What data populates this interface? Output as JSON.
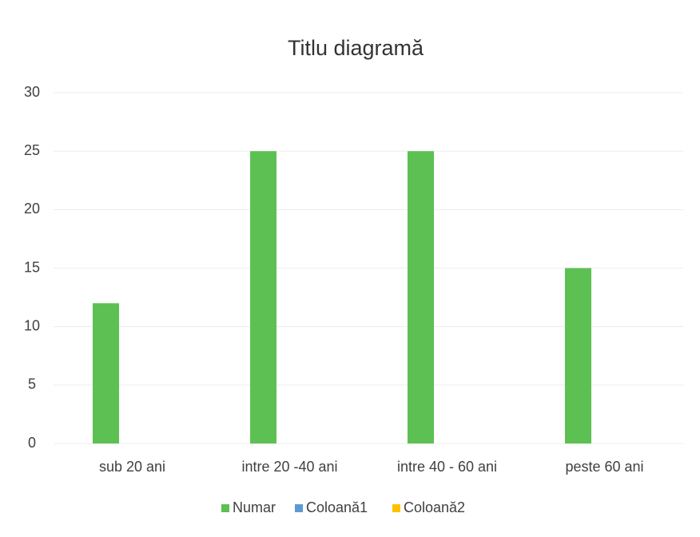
{
  "chart_data": {
    "type": "bar",
    "title": "Titlu diagramă",
    "categories": [
      "sub 20 ani",
      "intre 20 -40 ani",
      "intre 40 - 60 ani",
      "peste 60 ani"
    ],
    "series": [
      {
        "name": "Numar",
        "color": "#5cc152",
        "values": [
          12,
          25,
          25,
          15
        ]
      },
      {
        "name": "Coloană1",
        "color": "#5b9bd5",
        "values": [
          null,
          null,
          null,
          null
        ]
      },
      {
        "name": "Coloană2",
        "color": "#ffc000",
        "values": [
          null,
          null,
          null,
          null
        ]
      }
    ],
    "ylim": [
      0,
      30
    ],
    "yticks": [
      0,
      5,
      10,
      15,
      20,
      25,
      30
    ],
    "grid": true,
    "legend": "bottom"
  }
}
